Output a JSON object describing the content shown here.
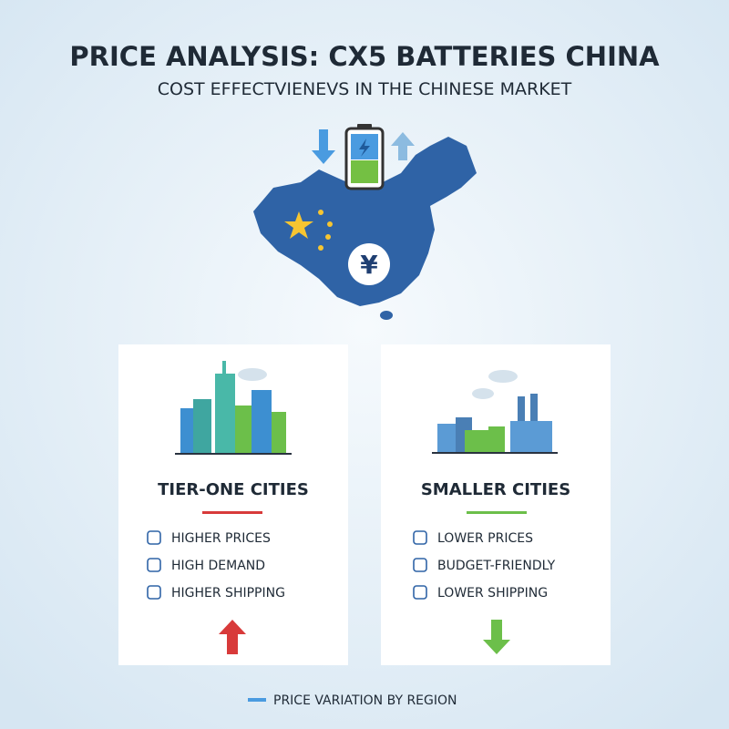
{
  "header": {
    "title": "PRICE ANALYSIS: CX5 BATTERIES CHINA",
    "subtitle": "COST EFFECTVIENEVS IN THE CHINESE MARKET"
  },
  "map": {
    "currency_symbol": "¥"
  },
  "cards": [
    {
      "title": "TIER-ONE CITIES",
      "items": [
        "HIGHER PRICES",
        "HIGH DEMAND",
        "HIGHER SHIPPING"
      ]
    },
    {
      "title": "SMALLER CITIES",
      "items": [
        "LOWER PRICES",
        "BUDGET-FRIENDLY",
        "LOWER SHIPPING"
      ]
    }
  ],
  "footer": {
    "legend": "PRICE VARIATION BY REGION"
  }
}
